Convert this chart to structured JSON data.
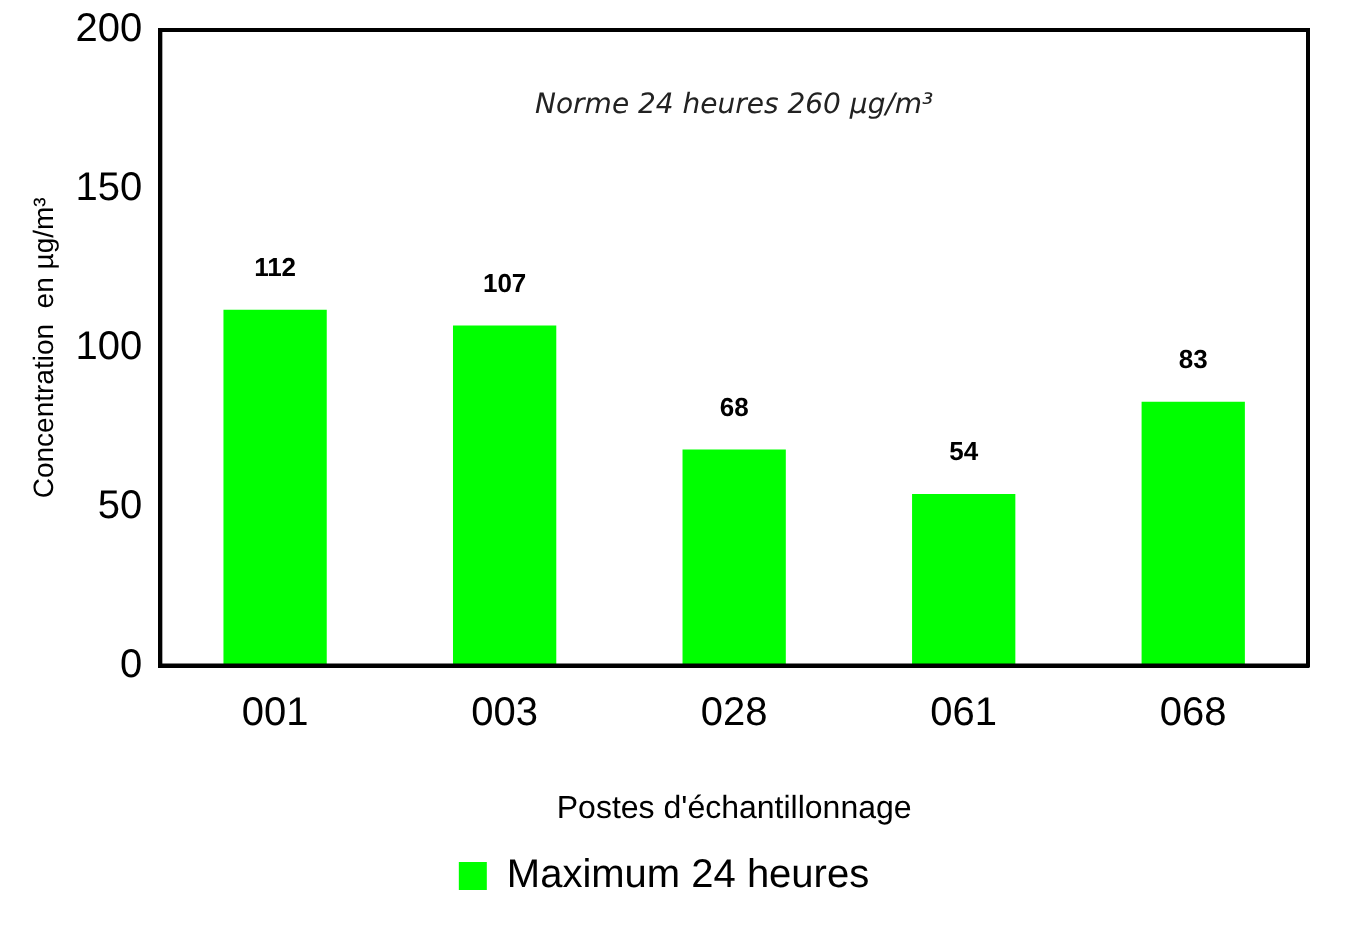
{
  "chart_data": {
    "type": "bar",
    "xlabel": "Postes d'échantillonnage",
    "ylabel": "Concentration  en µg/m³",
    "categories": [
      "001",
      "003",
      "028",
      "061",
      "068"
    ],
    "series": [
      {
        "name": "Maximum 24 heures",
        "color": "#00ff00",
        "values": [
          112,
          107,
          68,
          54,
          83
        ]
      }
    ],
    "ylim": [
      0,
      200
    ],
    "yticks": [
      0,
      50,
      100,
      150,
      200
    ],
    "grid": false,
    "legend": "bottom",
    "data_labels": true,
    "annotations": [
      "Norme 24 heures 260 µg/m³"
    ]
  }
}
